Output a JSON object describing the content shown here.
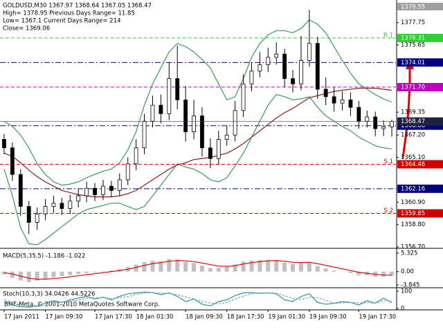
{
  "chart_data": [
    {
      "type": "candlestick",
      "title": "GOLDUSD,M30 1367.97 1368.64 1367.05 1368.47",
      "info": [
        "High= 1378.95  Previous Days Range= 11.85",
        "Low= 1367.1  Current Days Range= 214",
        "Close= 1369.06"
      ],
      "watermark": "BMF-Meta, © 2001-2010 MetaQuotes Software Corp.",
      "categories": [
        "17 Jan 2011",
        null,
        null,
        null,
        null,
        "17 Jan 09:30",
        null,
        null,
        null,
        null,
        null,
        "17 Jan 17:30",
        null,
        null,
        null,
        null,
        "18 Jan 01:30",
        null,
        null,
        null,
        null,
        null,
        "18 Jan 09:30",
        null,
        null,
        null,
        null,
        "18 Jan 17:30",
        null,
        null,
        null,
        null,
        "19 Jan 01:30",
        null,
        null,
        null,
        null,
        "19 Jan 09:30",
        null,
        null,
        null,
        null,
        null,
        "19 Jan 17:30",
        null,
        null,
        null,
        null
      ],
      "open": [
        1366.8,
        1366.0,
        1363.5,
        1360.5,
        1359.0,
        1359.8,
        1360.5,
        1360.8,
        1360.3,
        1361.0,
        1361.5,
        1362.2,
        1361.6,
        1362.4,
        1362.0,
        1363.0,
        1364.5,
        1366.0,
        1368.5,
        1370.0,
        1369.2,
        1372.5,
        1370.5,
        1367.5,
        1369.0,
        1366.0,
        1365.0,
        1366.8,
        1367.2,
        1369.5,
        1372.0,
        1373.2,
        1373.8,
        1374.5,
        1374.8,
        1372.5,
        1372.0,
        1374.2,
        1375.8,
        1371.5,
        1370.8,
        1370.2,
        1370.5,
        1369.8,
        1368.5,
        1368.9,
        1367.8,
        1367.97
      ],
      "high": [
        1367.3,
        1366.5,
        1364.0,
        1361.0,
        1360.4,
        1361.2,
        1361.5,
        1361.3,
        1361.6,
        1362.1,
        1362.8,
        1362.7,
        1363.0,
        1362.9,
        1363.6,
        1365.1,
        1366.8,
        1369.2,
        1370.9,
        1371.0,
        1374.0,
        1375.6,
        1371.8,
        1370.5,
        1369.8,
        1366.9,
        1367.6,
        1368.1,
        1370.4,
        1372.9,
        1374.0,
        1375.0,
        1375.4,
        1375.9,
        1375.3,
        1373.3,
        1376.5,
        1378.95,
        1376.4,
        1372.6,
        1371.7,
        1371.3,
        1371.2,
        1370.4,
        1369.5,
        1369.4,
        1368.6,
        1368.64
      ],
      "low": [
        1365.4,
        1362.9,
        1359.6,
        1357.9,
        1358.3,
        1359.2,
        1359.9,
        1359.7,
        1359.8,
        1360.4,
        1360.9,
        1361.0,
        1361.1,
        1361.4,
        1361.5,
        1362.5,
        1363.9,
        1365.4,
        1367.9,
        1368.3,
        1368.6,
        1369.6,
        1366.6,
        1366.8,
        1365.2,
        1364.1,
        1364.4,
        1366.2,
        1366.6,
        1368.9,
        1371.3,
        1372.6,
        1373.1,
        1373.8,
        1371.7,
        1371.2,
        1371.4,
        1373.6,
        1370.6,
        1370.0,
        1369.4,
        1369.5,
        1369.0,
        1367.8,
        1367.9,
        1367.1,
        1367.1,
        1367.05
      ],
      "close": [
        1366.0,
        1363.5,
        1360.5,
        1359.0,
        1359.8,
        1360.5,
        1360.8,
        1360.3,
        1361.0,
        1361.5,
        1362.2,
        1361.6,
        1362.4,
        1362.0,
        1363.0,
        1364.5,
        1366.0,
        1368.5,
        1370.0,
        1369.2,
        1372.5,
        1370.5,
        1367.5,
        1369.0,
        1366.0,
        1365.0,
        1366.8,
        1367.2,
        1369.5,
        1372.0,
        1373.2,
        1373.8,
        1374.5,
        1374.8,
        1372.5,
        1372.0,
        1374.2,
        1375.8,
        1371.5,
        1370.8,
        1370.2,
        1370.5,
        1369.8,
        1368.5,
        1368.9,
        1367.8,
        1367.97,
        1368.47
      ],
      "ma": {
        "color": "#8b1a1a",
        "values": [
          1365.5,
          1365.2,
          1364.6,
          1363.9,
          1363.3,
          1362.8,
          1362.4,
          1362.0,
          1361.8,
          1361.6,
          1361.5,
          1361.4,
          1361.4,
          1361.4,
          1361.5,
          1361.7,
          1362.0,
          1362.5,
          1363.0,
          1363.5,
          1364.0,
          1364.4,
          1364.6,
          1364.9,
          1365.0,
          1365.1,
          1365.3,
          1365.5,
          1365.9,
          1366.4,
          1367.0,
          1367.6,
          1368.2,
          1368.8,
          1369.3,
          1369.7,
          1370.2,
          1370.7,
          1370.9,
          1371.1,
          1371.3,
          1371.4,
          1371.5,
          1371.6,
          1371.6,
          1371.6,
          1371.5,
          1371.4
        ]
      },
      "bands": {
        "color": "#3a9a5a",
        "upper": [
          1368.5,
          1368.0,
          1367.2,
          1366.0,
          1364.5,
          1363.5,
          1362.8,
          1362.5,
          1362.6,
          1362.8,
          1363.2,
          1363.5,
          1363.8,
          1364.0,
          1364.6,
          1365.8,
          1367.5,
          1370.0,
          1372.0,
          1373.5,
          1375.0,
          1375.8,
          1375.5,
          1375.0,
          1374.3,
          1373.5,
          1372.0,
          1370.5,
          1370.8,
          1372.5,
          1374.5,
          1375.8,
          1376.6,
          1377.0,
          1377.0,
          1376.8,
          1377.2,
          1378.0,
          1377.6,
          1376.8,
          1375.5,
          1374.2,
          1373.0,
          1372.0,
          1371.5,
          1371.0,
          1370.6,
          1370.3
        ],
        "lower": [
          1364.0,
          1361.5,
          1358.5,
          1357.0,
          1356.9,
          1357.4,
          1358.0,
          1358.6,
          1359.2,
          1359.8,
          1360.2,
          1360.4,
          1360.6,
          1360.8,
          1360.8,
          1360.5,
          1360.2,
          1360.5,
          1361.5,
          1362.5,
          1363.5,
          1364.5,
          1364.2,
          1364.0,
          1363.6,
          1363.0,
          1362.8,
          1363.2,
          1364.3,
          1365.5,
          1367.0,
          1368.5,
          1370.0,
          1371.0,
          1370.8,
          1370.5,
          1370.6,
          1370.8,
          1369.8,
          1369.0,
          1368.5,
          1368.0,
          1367.6,
          1367.0,
          1366.6,
          1366.2,
          1366.0,
          1365.9
        ]
      },
      "levels": [
        {
          "value": 1376.31,
          "label": "1376.31",
          "color": "#32cd32",
          "style": "dash",
          "name": "R 1"
        },
        {
          "value": 1374.01,
          "label": "1374.01",
          "color": "#000080",
          "style": "dashdot"
        },
        {
          "value": 1371.7,
          "label": "1371.70",
          "color": "#c000c0",
          "style": "dash"
        },
        {
          "value": 1368.08,
          "label": "1368.08",
          "color": "#000080",
          "style": "dashdot"
        },
        {
          "value": 1364.46,
          "label": "1364.46",
          "color": "#d00000",
          "style": "dash",
          "name": "S 1"
        },
        {
          "value": 1362.16,
          "label": "1362.16",
          "color": "#000080",
          "style": "dashdot"
        },
        {
          "value": 1359.85,
          "label": "1359.85",
          "color": "#d00000",
          "style": "dash",
          "name": "S 2"
        }
      ],
      "ylim": [
        1356.7,
        1379.55
      ],
      "yticks": [
        1377.75,
        1375.65,
        1369.35,
        {
          "value": 1367.2,
          "label": "1367.20"
        },
        {
          "value": 1365.1,
          "label": "1365.10"
        },
        {
          "value": 1360.9,
          "label": "1360.90"
        },
        {
          "value": 1358.8,
          "label": "1358.80"
        },
        {
          "value": 1356.7,
          "label": "1356.70"
        }
      ]
    },
    {
      "type": "macd",
      "title": "MACD(5,35,5) -1.186 -1.022",
      "histogram": {
        "color": "#c0c0c0",
        "values": [
          -0.8,
          -1.8,
          -2.6,
          -3.0,
          -2.6,
          -2.1,
          -1.6,
          -1.3,
          -1.0,
          -0.7,
          -0.4,
          -0.2,
          0.1,
          0.3,
          0.7,
          1.3,
          2.0,
          2.7,
          3.1,
          3.0,
          3.6,
          3.5,
          2.8,
          2.5,
          1.7,
          1.0,
          1.1,
          1.4,
          2.1,
          2.9,
          3.2,
          3.3,
          3.4,
          3.3,
          2.6,
          2.2,
          2.5,
          2.8,
          1.6,
          0.9,
          0.3,
          0.0,
          -0.4,
          -1.0,
          -1.1,
          -1.5,
          -1.5,
          -1.186
        ]
      },
      "signal": {
        "color": "#d00000",
        "values": [
          -0.3,
          -0.7,
          -1.3,
          -1.9,
          -2.2,
          -2.2,
          -2.0,
          -1.8,
          -1.5,
          -1.2,
          -0.9,
          -0.6,
          -0.3,
          0.0,
          0.3,
          0.7,
          1.2,
          1.8,
          2.3,
          2.6,
          3.0,
          3.2,
          3.1,
          2.9,
          2.5,
          2.0,
          1.6,
          1.5,
          1.7,
          2.2,
          2.6,
          2.9,
          3.1,
          3.2,
          3.0,
          2.7,
          2.6,
          2.7,
          2.3,
          1.8,
          1.3,
          0.8,
          0.3,
          -0.2,
          -0.5,
          -0.8,
          -1.0,
          -1.022
        ]
      },
      "ylim": [
        -3.845,
        5.325
      ],
      "yticks": [
        5.325,
        {
          "value": 0,
          "label": "0.00"
        },
        -3.845
      ]
    },
    {
      "type": "stoch",
      "title": "Stoch(10,3,3) 34.0426 44.5226",
      "main": {
        "color": "#2f8fa0",
        "values": [
          40,
          20,
          10,
          8,
          15,
          30,
          45,
          35,
          50,
          60,
          70,
          55,
          65,
          50,
          70,
          85,
          90,
          95,
          92,
          80,
          90,
          70,
          40,
          55,
          25,
          15,
          40,
          50,
          75,
          90,
          92,
          88,
          90,
          85,
          50,
          40,
          70,
          85,
          35,
          25,
          30,
          40,
          35,
          20,
          45,
          30,
          60,
          34.0426
        ]
      },
      "signal": {
        "color": "#6aaab8",
        "values": [
          50,
          35,
          22,
          12,
          11,
          18,
          30,
          37,
          43,
          48,
          60,
          62,
          63,
          57,
          62,
          68,
          82,
          90,
          92,
          89,
          87,
          80,
          67,
          55,
          40,
          32,
          27,
          35,
          55,
          72,
          86,
          90,
          90,
          88,
          75,
          58,
          53,
          65,
          63,
          48,
          30,
          32,
          35,
          32,
          33,
          32,
          45,
          44.5226
        ]
      },
      "ylim": [
        0,
        100
      ],
      "yticks": [
        100,
        0
      ]
    }
  ]
}
